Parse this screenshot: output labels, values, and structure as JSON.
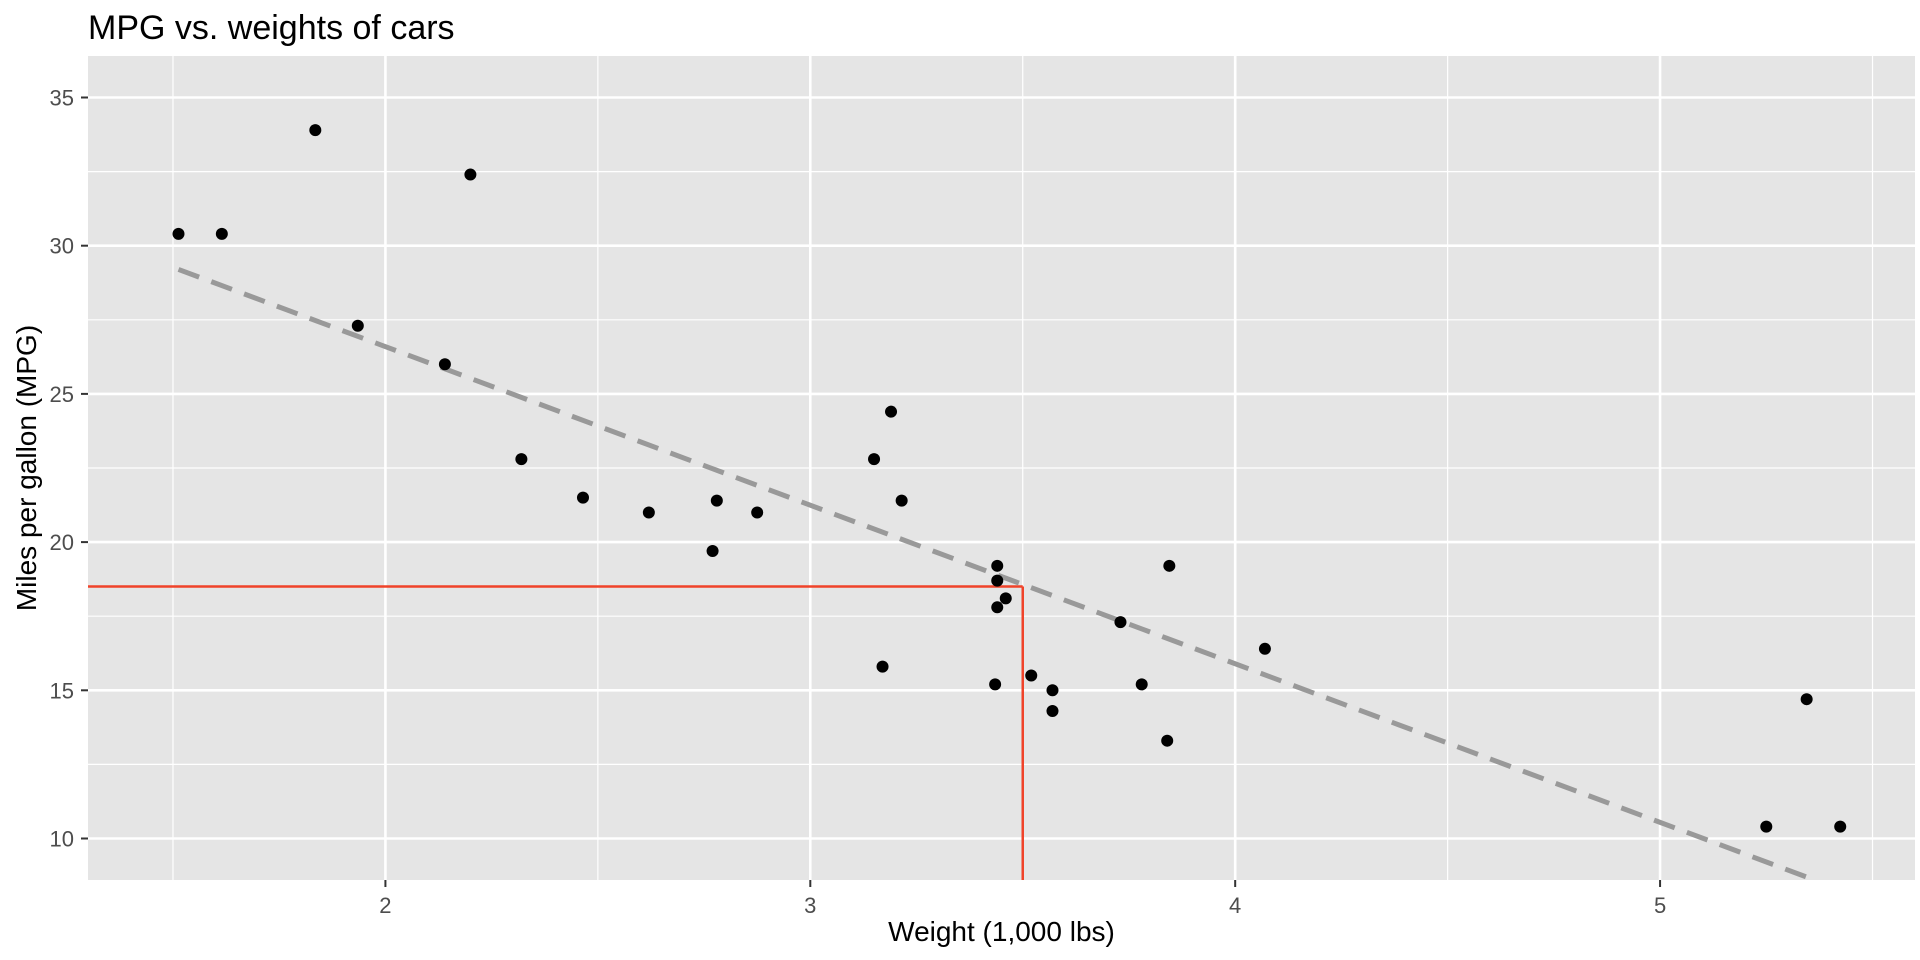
{
  "chart_data": {
    "type": "scatter",
    "title": "MPG vs. weights of cars",
    "xlabel": "Weight (1,000 lbs)",
    "ylabel": "Miles per gallon (MPG)",
    "xlim": [
      1.3,
      5.6
    ],
    "ylim": [
      8.6,
      36.4
    ],
    "x_ticks": [
      2,
      3,
      4,
      5
    ],
    "y_ticks": [
      10,
      15,
      20,
      25,
      30,
      35
    ],
    "x_minor": [
      1.5,
      2.5,
      3.5,
      4.5,
      5.5
    ],
    "y_minor": [
      12.5,
      17.5,
      22.5,
      27.5,
      32.5
    ],
    "grid": true,
    "legend": "none",
    "colors": {
      "panel": "#e5e5e5",
      "grid": "#ffffff",
      "points": "#000000",
      "trend_line": "#999999",
      "reference_line": "#f0432a"
    },
    "points": [
      {
        "x": 1.513,
        "y": 30.4
      },
      {
        "x": 1.615,
        "y": 30.4
      },
      {
        "x": 1.835,
        "y": 33.9
      },
      {
        "x": 1.935,
        "y": 27.3
      },
      {
        "x": 2.14,
        "y": 26.0
      },
      {
        "x": 2.2,
        "y": 32.4
      },
      {
        "x": 2.32,
        "y": 22.8
      },
      {
        "x": 2.465,
        "y": 21.5
      },
      {
        "x": 2.62,
        "y": 21.0
      },
      {
        "x": 2.77,
        "y": 19.7
      },
      {
        "x": 2.78,
        "y": 21.4
      },
      {
        "x": 2.875,
        "y": 21.0
      },
      {
        "x": 3.15,
        "y": 22.8
      },
      {
        "x": 3.17,
        "y": 15.8
      },
      {
        "x": 3.19,
        "y": 24.4
      },
      {
        "x": 3.215,
        "y": 21.4
      },
      {
        "x": 3.435,
        "y": 15.2
      },
      {
        "x": 3.44,
        "y": 19.2
      },
      {
        "x": 3.44,
        "y": 18.7
      },
      {
        "x": 3.44,
        "y": 17.8
      },
      {
        "x": 3.46,
        "y": 18.1
      },
      {
        "x": 3.52,
        "y": 15.5
      },
      {
        "x": 3.57,
        "y": 15.0
      },
      {
        "x": 3.57,
        "y": 14.3
      },
      {
        "x": 3.73,
        "y": 17.3
      },
      {
        "x": 3.78,
        "y": 15.2
      },
      {
        "x": 3.84,
        "y": 13.3
      },
      {
        "x": 3.845,
        "y": 19.2
      },
      {
        "x": 4.07,
        "y": 16.4
      },
      {
        "x": 5.25,
        "y": 10.4
      },
      {
        "x": 5.345,
        "y": 14.7
      },
      {
        "x": 5.424,
        "y": 10.4
      }
    ],
    "trend_line": {
      "style": "dashed",
      "x": [
        1.513,
        5.345
      ],
      "y": [
        29.2,
        8.7
      ]
    },
    "reference_line": {
      "x": 3.5,
      "y": 18.5
    }
  }
}
